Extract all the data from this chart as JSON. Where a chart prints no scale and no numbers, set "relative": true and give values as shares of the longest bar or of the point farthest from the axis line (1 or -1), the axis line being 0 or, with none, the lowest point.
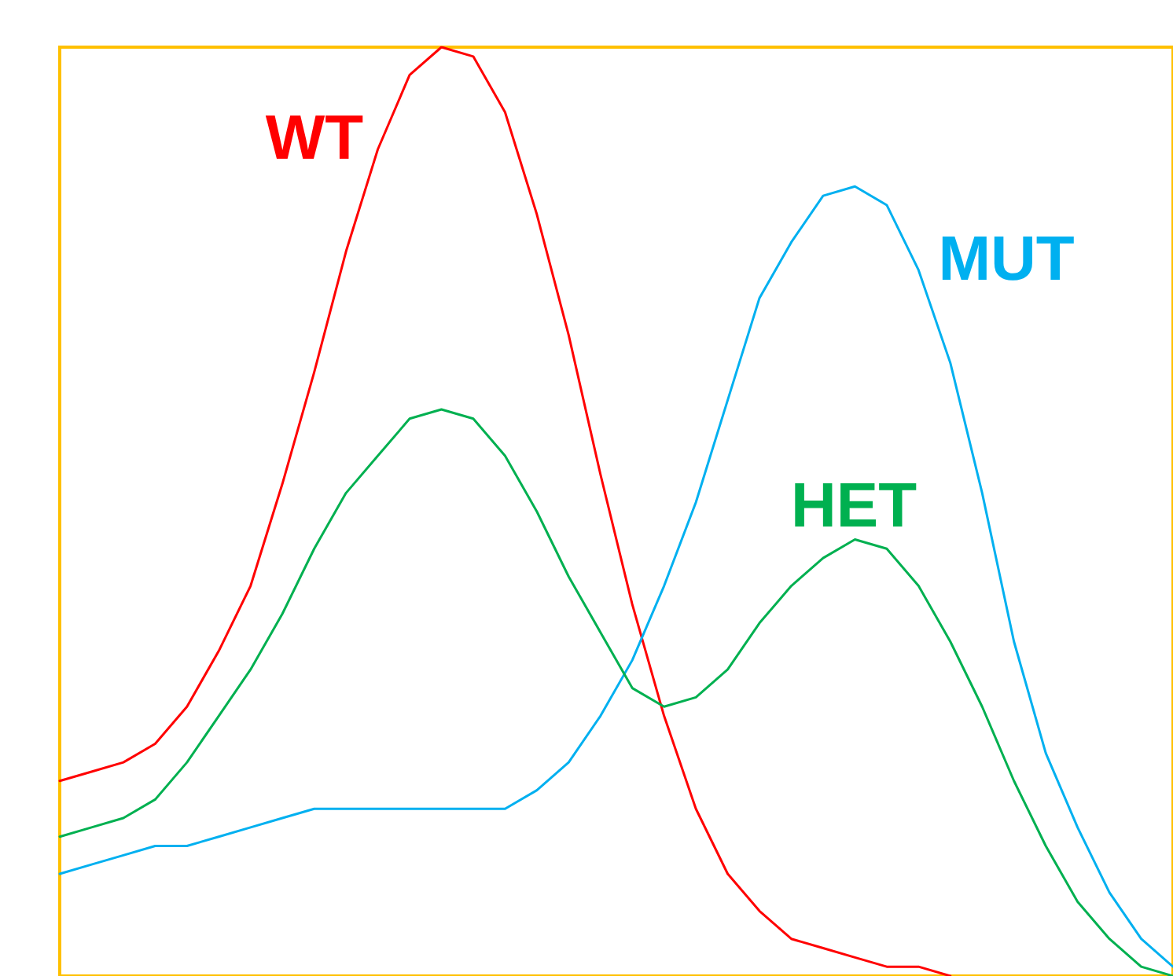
{
  "chart_data": {
    "type": "line",
    "relative": true,
    "legend": false,
    "marker": "none",
    "line_style": "solid",
    "categories": [
      null,
      null,
      null,
      null,
      null,
      null,
      null,
      null,
      null,
      null,
      null,
      null,
      null,
      null,
      null,
      null,
      null,
      null,
      null,
      null,
      null,
      null,
      null,
      null,
      null,
      null,
      null,
      null,
      null,
      null,
      null,
      null,
      null,
      null,
      null,
      null
    ],
    "series": [
      {
        "name": "WT",
        "color": "#ff0000",
        "values": [
          0.21,
          0.22,
          0.23,
          0.25,
          0.29,
          0.35,
          0.42,
          0.53,
          0.65,
          0.78,
          0.89,
          0.97,
          1,
          0.99,
          0.93,
          0.82,
          0.69,
          0.54,
          0.4,
          0.28,
          0.18,
          0.11,
          0.07,
          0.04,
          0.03,
          0.02,
          0.01,
          0.01,
          0,
          null,
          null,
          null,
          null,
          null,
          null,
          null
        ]
      },
      {
        "name": "MUT",
        "color": "#00b0f0",
        "values": [
          0.11,
          0.12,
          0.13,
          0.14,
          0.14,
          0.15,
          0.16,
          0.17,
          0.18,
          0.18,
          0.18,
          0.18,
          0.18,
          0.18,
          0.18,
          0.2,
          0.23,
          0.28,
          0.34,
          0.42,
          0.51,
          0.62,
          0.73,
          0.79,
          0.84,
          0.85,
          0.83,
          0.76,
          0.66,
          0.52,
          0.36,
          0.24,
          0.16,
          0.09,
          0.04,
          0.01
        ]
      },
      {
        "name": "HET",
        "color": "#00b050",
        "values": [
          0.15,
          0.16,
          0.17,
          0.19,
          0.23,
          0.28,
          0.33,
          0.39,
          0.46,
          0.52,
          0.56,
          0.6,
          0.61,
          0.6,
          0.56,
          0.5,
          0.43,
          0.37,
          0.31,
          0.29,
          0.3,
          0.33,
          0.38,
          0.42,
          0.45,
          0.47,
          0.46,
          0.42,
          0.36,
          0.29,
          0.21,
          0.14,
          0.08,
          0.04,
          0.01,
          0
        ]
      }
    ]
  }
}
